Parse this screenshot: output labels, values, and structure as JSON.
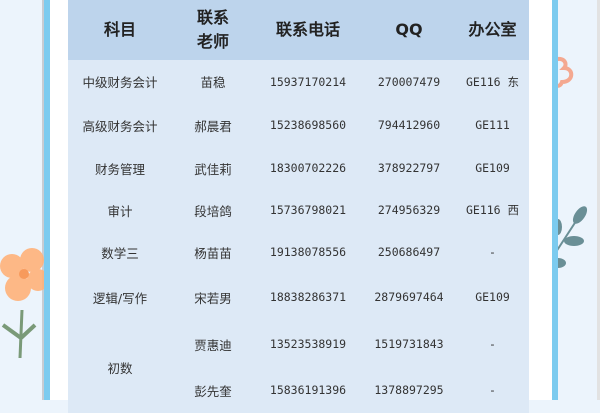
{
  "table": {
    "headers": [
      "科目",
      "联系老师",
      "联系电话",
      "QQ",
      "办公室"
    ],
    "header_teacher_lines": [
      "联系",
      "老师"
    ],
    "rows": [
      {
        "subject": "中级财务会计",
        "teacher": "苗稳",
        "phone": "15937170214",
        "qq": "270007479",
        "office": "GE116 东"
      },
      {
        "subject": "高级财务会计",
        "teacher": "郝晨君",
        "phone": "15238698560",
        "qq": "794412960",
        "office": "GE111"
      },
      {
        "subject": "财务管理",
        "teacher": "武佳莉",
        "phone": "18300702226",
        "qq": "378922797",
        "office": "GE109"
      },
      {
        "subject": "审计",
        "teacher": "段培鸽",
        "phone": "15736798021",
        "qq": "274956329",
        "office": "GE116 西"
      },
      {
        "subject": "数学三",
        "teacher": "杨苗苗",
        "phone": "19138078556",
        "qq": "250686497",
        "office": "-"
      },
      {
        "subject": "逻辑/写作",
        "teacher": "宋若男",
        "phone": "18838286371",
        "qq": "2879697464",
        "office": "GE109"
      }
    ],
    "merged": {
      "subject": "初数",
      "rows": [
        {
          "teacher": "贾惠迪",
          "phone": "13523538919",
          "qq": "1519731843",
          "office": "-"
        },
        {
          "teacher": "彭先奎",
          "phone": "15836191396",
          "qq": "1378897295",
          "office": "-"
        }
      ]
    }
  },
  "colors": {
    "header_bg": "#bdd4ec",
    "body_bg": "#dde9f6",
    "border": "#7ccbef",
    "page_bg": "#ecf4fc"
  },
  "decorations": [
    "flower-icon",
    "leaf-icon",
    "petal-icon"
  ]
}
